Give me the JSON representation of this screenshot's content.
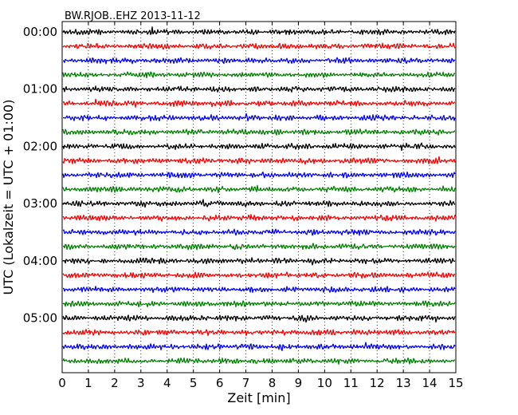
{
  "chart_data": {
    "type": "line",
    "subtype": "seismogram-dayplot",
    "title": "BW.RJOB..EHZ 2013-11-12",
    "xlabel": "Zeit  [min]",
    "ylabel": "UTC (Lokalzeit = UTC + 01:00)",
    "xlim": [
      0,
      15
    ],
    "x_ticks": [
      0,
      1,
      2,
      3,
      4,
      5,
      6,
      7,
      8,
      9,
      10,
      11,
      12,
      13,
      14,
      15
    ],
    "y_tick_labels": [
      "00:00",
      "01:00",
      "02:00",
      "03:00",
      "04:00",
      "05:00"
    ],
    "trace_count": 24,
    "trace_interval_minutes": 15,
    "color_cycle": [
      "#000000",
      "#ff0000",
      "#0000ff",
      "#008000"
    ],
    "vertical_grid": "dotted",
    "signal": "continuous low-amplitude ground noise"
  }
}
